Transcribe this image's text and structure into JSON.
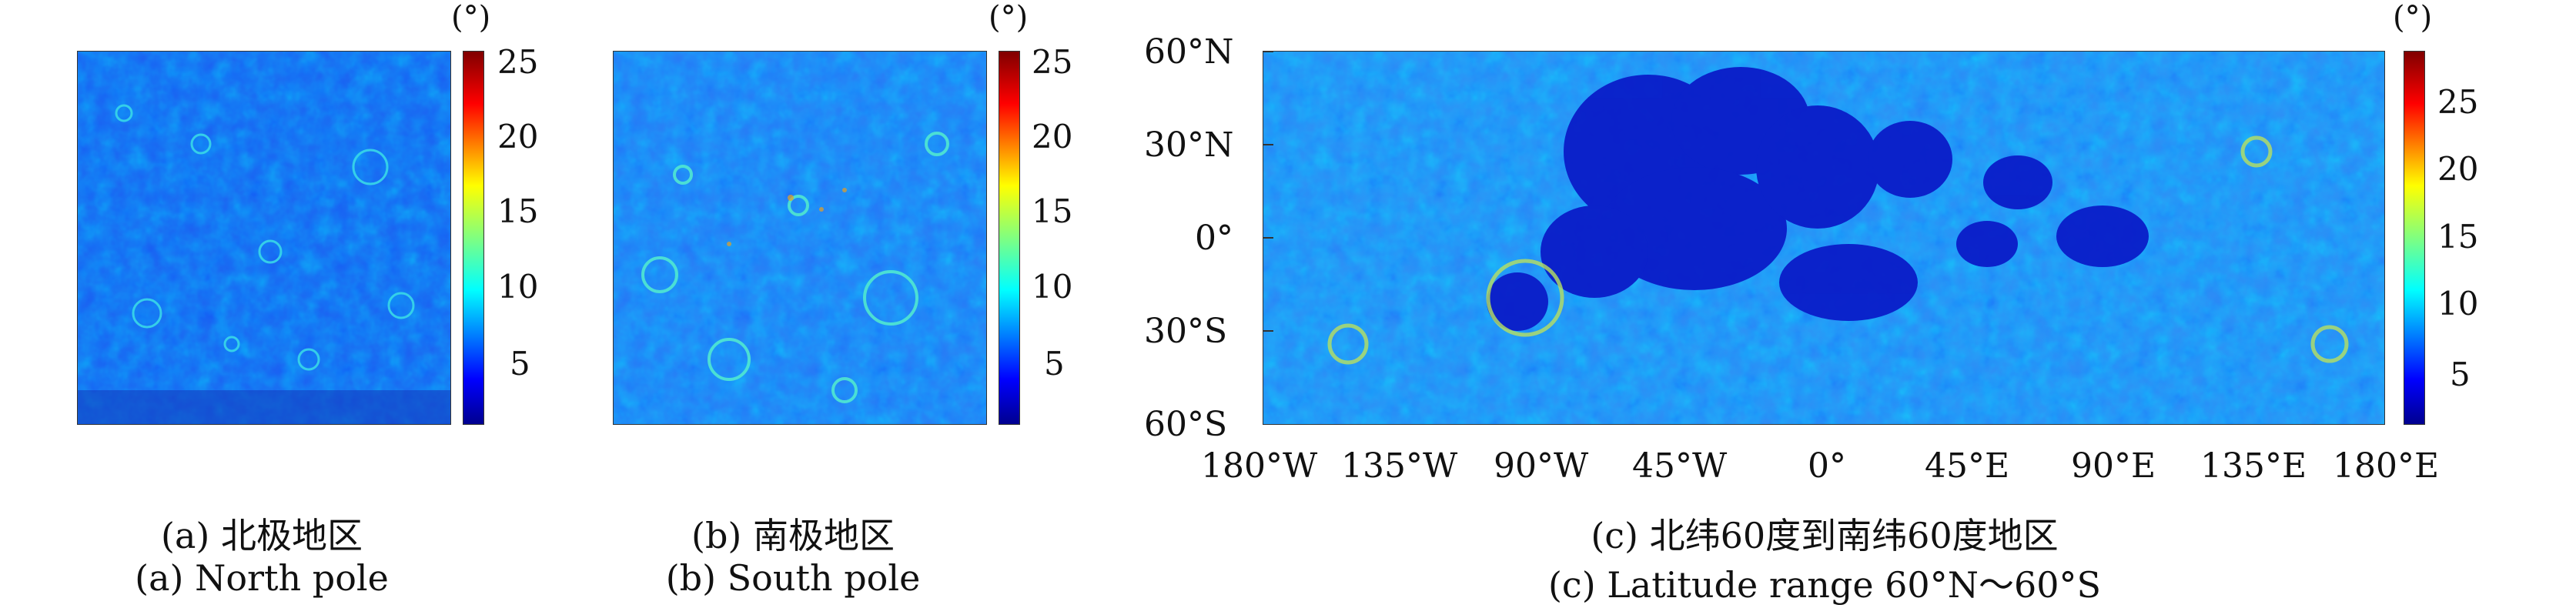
{
  "colors": {
    "colormap": [
      "#00008f",
      "#0000ff",
      "#0080ff",
      "#00ffff",
      "#80ff80",
      "#ffff00",
      "#ff8000",
      "#ff0000",
      "#800000"
    ]
  },
  "panels": [
    {
      "id": "north",
      "colorbar": {
        "unit": "(°)",
        "ticks": [
          "25",
          "20",
          "15",
          "10",
          "5"
        ],
        "range": [
          1,
          26
        ]
      },
      "caption_cn": "(a) 北极地区",
      "caption_en": "(a) North pole"
    },
    {
      "id": "south",
      "colorbar": {
        "unit": "(°)",
        "ticks": [
          "25",
          "20",
          "15",
          "10",
          "5"
        ],
        "range": [
          1,
          26
        ]
      },
      "caption_cn": "(b) 南极地区",
      "caption_en": "(b) South pole"
    },
    {
      "id": "global",
      "colorbar": {
        "unit": "(°)",
        "ticks": [
          "25",
          "20",
          "15",
          "10",
          "5"
        ],
        "range": [
          1,
          29
        ]
      },
      "y_ticks": [
        "60°N",
        "30°N",
        "0°",
        "30°S",
        "60°S"
      ],
      "x_ticks": [
        "180°W",
        "135°W",
        "90°W",
        "45°W",
        "0°",
        "45°E",
        "90°E",
        "135°E",
        "180°E"
      ],
      "caption_cn": "(c) 北纬60度到南纬60度地区",
      "caption_en": "(c) Latitude range 60°N～60°S"
    }
  ]
}
